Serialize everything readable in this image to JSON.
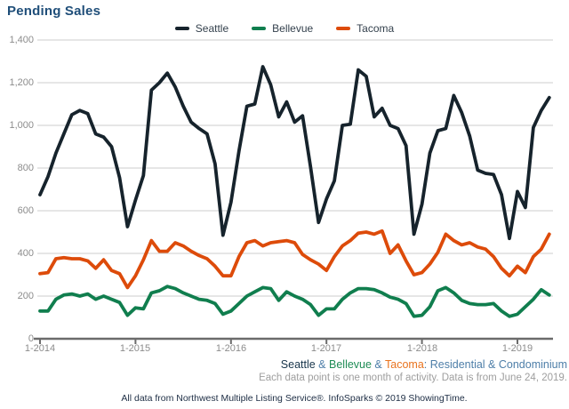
{
  "title": "Pending Sales",
  "legend": {
    "items": [
      {
        "label": "Seattle",
        "color": "#16232C"
      },
      {
        "label": "Bellevue",
        "color": "#107E4E"
      },
      {
        "label": "Tacoma",
        "color": "#DD4B0A"
      }
    ]
  },
  "chart_data": {
    "type": "line",
    "title": "Pending Sales",
    "x_unit": "month",
    "x_start": "1-2014",
    "x_end": "5-2019",
    "x_tick_labels": [
      "1-2014",
      "1-2015",
      "1-2016",
      "1-2017",
      "1-2018",
      "1-2019"
    ],
    "x_tick_month_index": [
      0,
      12,
      24,
      36,
      48,
      60
    ],
    "y_ticks": [
      "1,400",
      "1,200",
      "1,000",
      "800",
      "600",
      "400",
      "200",
      "0"
    ],
    "ylim": [
      0,
      1400
    ],
    "grid": "horizontal",
    "legend_position": "top-center",
    "series": [
      {
        "name": "Seattle",
        "color": "#16232C",
        "values": [
          675,
          760,
          870,
          960,
          1050,
          1070,
          1055,
          960,
          945,
          900,
          755,
          525,
          650,
          765,
          1165,
          1200,
          1245,
          1180,
          1090,
          1015,
          985,
          960,
          820,
          485,
          640,
          880,
          1090,
          1100,
          1275,
          1190,
          1040,
          1110,
          1015,
          1045,
          805,
          545,
          655,
          740,
          1000,
          1005,
          1260,
          1230,
          1040,
          1080,
          1000,
          985,
          905,
          490,
          630,
          870,
          975,
          985,
          1140,
          1060,
          950,
          790,
          775,
          770,
          675,
          470,
          690,
          615,
          990,
          1070,
          1130
        ]
      },
      {
        "name": "Bellevue",
        "color": "#107E4E",
        "values": [
          130,
          130,
          185,
          205,
          210,
          200,
          210,
          185,
          200,
          185,
          170,
          110,
          145,
          140,
          215,
          225,
          245,
          235,
          215,
          200,
          185,
          180,
          165,
          115,
          130,
          165,
          200,
          220,
          240,
          235,
          180,
          220,
          200,
          185,
          160,
          110,
          140,
          140,
          185,
          215,
          235,
          235,
          230,
          215,
          195,
          185,
          165,
          105,
          110,
          150,
          225,
          240,
          215,
          180,
          165,
          160,
          160,
          165,
          130,
          105,
          115,
          150,
          185,
          230,
          205
        ]
      },
      {
        "name": "Tacoma",
        "color": "#DD4B0A",
        "values": [
          305,
          310,
          375,
          380,
          375,
          375,
          365,
          330,
          370,
          320,
          305,
          240,
          295,
          370,
          460,
          410,
          410,
          450,
          435,
          410,
          390,
          375,
          340,
          295,
          295,
          385,
          450,
          460,
          435,
          450,
          455,
          460,
          450,
          395,
          370,
          350,
          320,
          385,
          435,
          460,
          495,
          500,
          490,
          505,
          400,
          440,
          365,
          300,
          310,
          350,
          405,
          490,
          460,
          440,
          450,
          430,
          420,
          385,
          330,
          295,
          340,
          310,
          385,
          420,
          490
        ]
      }
    ]
  },
  "captions": {
    "series_line": {
      "seattle": "Seattle",
      "amp1": " & ",
      "bellevue": "Bellevue",
      "amp2": " & ",
      "tacoma": "Tacoma",
      "rest": ": Residential & Condominium"
    },
    "note": "Each data point is one month of activity. Data is from June 24, 2019.",
    "footer": "All data from Northwest Multiple Listing Service®. InfoSparks © 2019 ShowingTime."
  },
  "colors": {
    "title": "#1F4E79",
    "gridline": "#CCCCCC",
    "axis": "#6B6B6B",
    "tick_labels": "#8C8C8C",
    "caption_blue": "#4D7EA8",
    "note_gray": "#9E9E9E",
    "footer_navy": "#1D2D44"
  }
}
